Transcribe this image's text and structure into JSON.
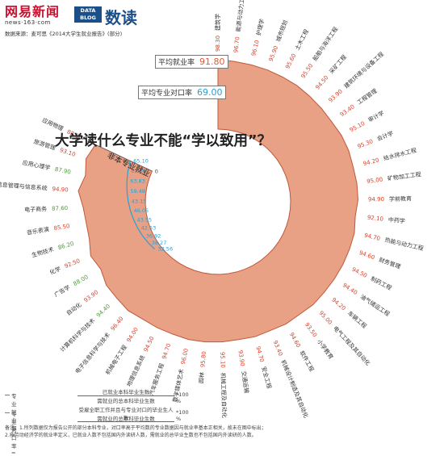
{
  "header": {
    "brand_name": "网易新闻",
    "brand_url": "news·163·com",
    "logo_text": "DATA BLOG",
    "logo_cn": "数读",
    "source": "数据来源：麦可思《2014大学生就业报告》(部分)"
  },
  "title": "大学读什么专业不能“学以致用”？",
  "averages": {
    "employment_label": "平均就业率",
    "employment_value": "91.80",
    "match_label": "平均专业对口率",
    "match_value": "69.00"
  },
  "colors": {
    "employment": "#e8a184",
    "employment_edge": "#c0583a",
    "match": "#2a9fd6",
    "label_red": "#d9432b",
    "label_green": "#4f9a3c"
  },
  "chart_data": {
    "type": "radial",
    "series": [
      {
        "name": "专业就业率"
      },
      {
        "name": "专业对口率"
      }
    ],
    "categories": [
      "建筑学",
      "能源与动力工程",
      "护理学",
      "城市规划",
      "土木工程",
      "船舶与海洋工程",
      "采矿工程",
      "建筑环境与设备工程",
      "工程管理",
      "审计学",
      "会计学",
      "给水排水工程",
      "矿物加工工程",
      "学前教育",
      "中药学",
      "热能与动力工程",
      "财务管理",
      "制药工程",
      "油气储运工程",
      "车辆工程",
      "电气工程及其自动化",
      "小学教育",
      "软件工程",
      "机械设计制造及其自动化",
      "安全工程",
      "交通运输",
      "机械工程及自动化",
      "园林",
      "数字媒体艺术",
      "汽车服务工程",
      "地理信息系统",
      "机械电子工程",
      "电子信息科学与技术",
      "计算机科学与技术",
      "自动化",
      "广告学",
      "化学",
      "生物技术",
      "音乐表演",
      "电子商务",
      "信息管理与信息系统",
      "应用心理学",
      "旅游管理",
      "应用物理"
    ],
    "employment_rate": [
      98.3,
      96.7,
      96.1,
      95.9,
      95.6,
      95.5,
      94.5,
      93.9,
      93.4,
      95.1,
      95.3,
      94.2,
      95.0,
      94.9,
      92.1,
      94.7,
      94.6,
      94.5,
      94.4,
      94.2,
      95.0,
      93.5,
      94.6,
      93.4,
      94.7,
      93.9,
      95.1,
      95.8,
      96.0,
      94.7,
      94.5,
      94.0,
      96.4,
      94.4,
      93.9,
      88.0,
      92.5,
      86.2,
      85.5,
      87.6,
      94.9,
      87.9,
      93.1,
      88.0
    ],
    "range": [
      0,
      100
    ],
    "non_match_section_label": "非本专业就业",
    "non_match_labels": [
      "32.56",
      "38.27",
      "36.92",
      "42.53",
      "43.55",
      "46.05",
      "43.15",
      "59.48",
      "63.83",
      "62.89",
      "65.10"
    ],
    "scale_100_label": "100%",
    "scale_0_label": "0"
  },
  "legend": {
    "employment_name": "专业就业率=",
    "employment_numerator": "已就业本科毕业生数",
    "employment_denominator": "需就业的总本科毕业生数",
    "employment_multiplier": "*100 %",
    "match_name": "专业对口率=",
    "match_numerator": "受雇全职工作并且与专业对口的毕业生人数",
    "match_denominator": "需就业的总本科毕业生数",
    "match_multiplier": "*100 %"
  },
  "notes": {
    "line1": "备注：1.所列数据仅为报告公开的部分本科专业，对口率高于平均数的专业数据因与就业率基本正相关，故未在图中标出；",
    "line2": "2.按劳动经济学的就业率定义，已就业人数不包括国内外读研人数，需就业的总毕业生数也不包括国内外读研的人数。"
  }
}
